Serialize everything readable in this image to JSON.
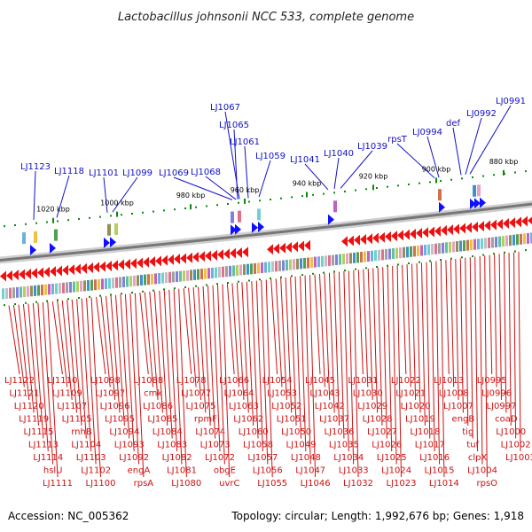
{
  "title": "Lactobacillus johnsonii NCC 533, complete genome",
  "footer": {
    "accession": "Accession: NC_005362",
    "summary": "Topology: circular; Length: 1,992,676 bp; Genes: 1,918"
  },
  "ticks": [
    "1020 kbp",
    "1000 kbp",
    "980 kbp",
    "960 kbp",
    "940 kbp",
    "920 kbp",
    "900 kbp",
    "880 kbp"
  ],
  "genes_top": [
    "LJ1123",
    "LJ1118",
    "LJ1101",
    "LJ1099",
    "LJ1069",
    "LJ1068",
    "LJ1067",
    "LJ1065",
    "LJ1061",
    "LJ1059",
    "LJ1041",
    "LJ1040",
    "LJ1039",
    "rpsT",
    "LJ0994",
    "def",
    "LJ0992",
    "LJ0991"
  ],
  "genes_bottom": [
    "LJ1122",
    "LJ1121",
    "LJ1120",
    "LJ1119",
    "LJ1115",
    "LJ1113",
    "LJ1114",
    "hslU",
    "LJ1111",
    "LJ1110",
    "LJ1109",
    "LJ1107",
    "LJ1105",
    "rnhB",
    "LJ1104",
    "LJ1103",
    "LJ1102",
    "LJ1100",
    "LJ1098",
    "LJ1097",
    "LJ1096",
    "LJ1095",
    "LJ1094",
    "LJ1093",
    "LJ1092",
    "engA",
    "rpsA",
    "LJ1088",
    "cmk",
    "LJ1086",
    "LJ1085",
    "LJ1084",
    "LJ1083",
    "LJ1082",
    "LJ1081",
    "LJ1080",
    "LJ1078",
    "LJ1077",
    "LJ1075",
    "rpmF",
    "LJ1074",
    "LJ1073",
    "LJ1072",
    "obgE",
    "uvrC",
    "LJ1066",
    "LJ1064",
    "LJ1063",
    "LJ1062",
    "LJ1060",
    "LJ1058",
    "LJ1057",
    "LJ1056",
    "LJ1055",
    "LJ1054",
    "LJ1053",
    "LJ1052",
    "LJ1051",
    "LJ1050",
    "LJ1049",
    "LJ1048",
    "LJ1047",
    "LJ1046",
    "LJ1045",
    "LJ1043",
    "LJ1042",
    "LJ1037",
    "LJ1036",
    "LJ1035",
    "LJ1034",
    "LJ1033",
    "LJ1032",
    "LJ1031",
    "LJ1030",
    "LJ1029",
    "LJ1028",
    "LJ1027",
    "LJ1026",
    "LJ1025",
    "LJ1024",
    "LJ1023",
    "LJ1022",
    "LJ1021",
    "LJ1020",
    "LJ1019",
    "LJ1018",
    "LJ1017",
    "LJ1016",
    "LJ1015",
    "LJ1014",
    "LJ1013",
    "LJ1008",
    "LJ1007",
    "engB",
    "tig",
    "tuf",
    "clpX",
    "LJ1004",
    "rpsO",
    "LJ0995",
    "LJ0996",
    "LJ0997",
    "coaD",
    "LJ1000",
    "LJ1002",
    "LJ1003"
  ],
  "colors": {
    "top_label": "#1010c8",
    "bottom_label": "#d01010",
    "forward_arrow": "#1010ff",
    "reverse_arrow": "#ee1010",
    "backbone": "#888888",
    "tick_mark": "#0a8a0a"
  }
}
